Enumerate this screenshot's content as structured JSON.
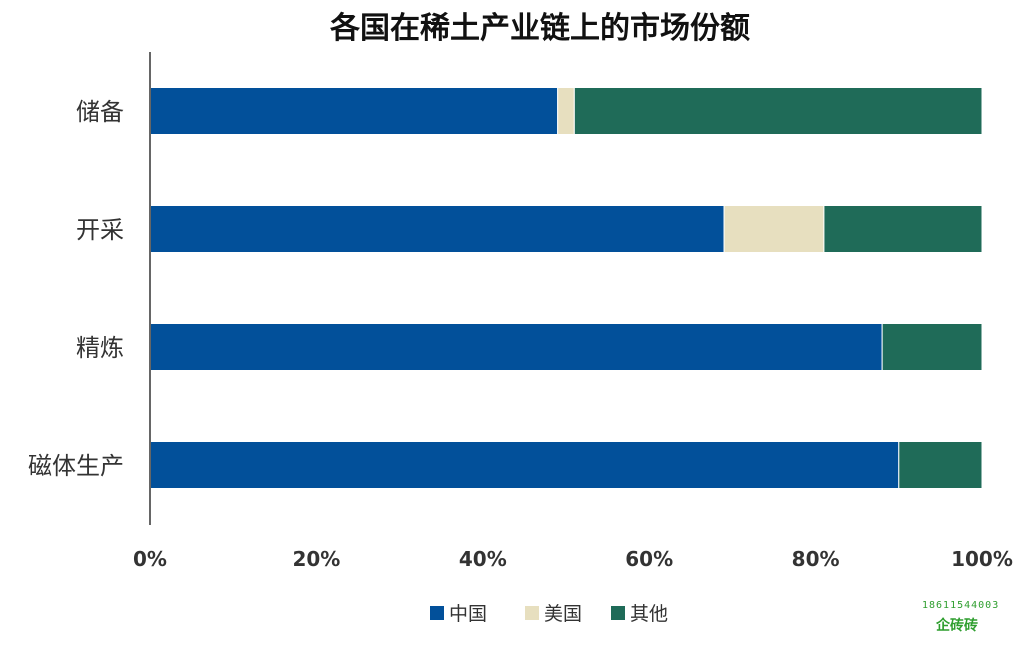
{
  "chart_data": {
    "type": "bar",
    "orientation": "horizontal",
    "stacked": true,
    "title": "各国在稀土产业链上的市场份额",
    "categories": [
      "储备",
      "开采",
      "精炼",
      "磁体生产"
    ],
    "series": [
      {
        "name": "中国",
        "color": "#02509a",
        "values": [
          49,
          69,
          88,
          90
        ]
      },
      {
        "name": "美国",
        "color": "#e7dfbf",
        "values": [
          2,
          12,
          0,
          0
        ]
      },
      {
        "name": "其他",
        "color": "#1f6b58",
        "values": [
          49,
          19,
          12,
          10
        ]
      }
    ],
    "xlim": [
      0,
      100
    ],
    "xticks": [
      "0%",
      "20%",
      "40%",
      "60%",
      "80%",
      "100%"
    ],
    "grid": false,
    "legend_position": "bottom"
  },
  "watermark": {
    "number": "18611544003",
    "text": "企砖砖"
  }
}
